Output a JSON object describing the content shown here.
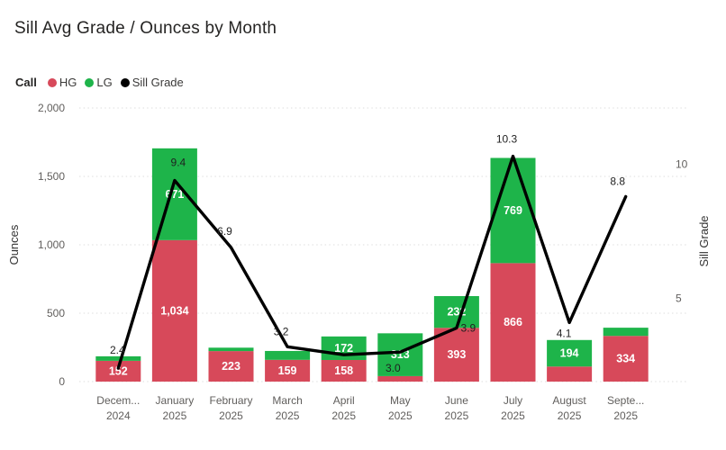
{
  "title": "Sill Avg Grade / Ounces by Month",
  "legend": {
    "title": "Call",
    "items": [
      {
        "label": "HG",
        "color": "#d7495a"
      },
      {
        "label": "LG",
        "color": "#1eb44a"
      },
      {
        "label": "Sill Grade",
        "color": "#000000"
      }
    ]
  },
  "chart_data": {
    "type": "combo-stacked-bar-line",
    "title": "Sill Avg Grade / Ounces by Month",
    "grid": "dotted-horizontal",
    "legend_position": "top-left",
    "categories": [
      {
        "month": "Decem...",
        "year": "2024"
      },
      {
        "month": "January",
        "year": "2025"
      },
      {
        "month": "February",
        "year": "2025"
      },
      {
        "month": "March",
        "year": "2025"
      },
      {
        "month": "April",
        "year": "2025"
      },
      {
        "month": "May",
        "year": "2025"
      },
      {
        "month": "June",
        "year": "2025"
      },
      {
        "month": "July",
        "year": "2025"
      },
      {
        "month": "August",
        "year": "2025"
      },
      {
        "month": "Septe...",
        "year": "2025"
      }
    ],
    "series": [
      {
        "name": "HG",
        "type": "bar",
        "color": "#d7495a",
        "values": [
          152,
          1034,
          223,
          159,
          158,
          40,
          393,
          866,
          110,
          334
        ],
        "labels": [
          "152",
          "1,034",
          "223",
          "159",
          "158",
          "",
          "393",
          "866",
          "",
          "334"
        ]
      },
      {
        "name": "LG",
        "type": "bar",
        "color": "#1eb44a",
        "values": [
          33,
          671,
          25,
          65,
          172,
          313,
          232,
          769,
          194,
          60
        ],
        "labels": [
          "",
          "671",
          "",
          "",
          "172",
          "313",
          "232",
          "769",
          "194",
          ""
        ]
      },
      {
        "name": "Sill Grade",
        "type": "line",
        "color": "#000000",
        "values": [
          2.4,
          9.4,
          6.9,
          3.2,
          2.9,
          3.0,
          3.9,
          10.3,
          4.1,
          8.8
        ],
        "labels": [
          "2.4",
          "9.4",
          "6.9",
          "3.2",
          "",
          "3.0",
          "3.9",
          "10.3",
          "4.1",
          "8.8"
        ]
      }
    ],
    "left_axis": {
      "label": "Ounces",
      "ticks": [
        "0",
        "500",
        "1,000",
        "1,500",
        "2,000"
      ],
      "tick_values": [
        0,
        500,
        1000,
        1500,
        2000
      ],
      "range": [
        0,
        2000
      ]
    },
    "right_axis": {
      "label": "Sill Grade",
      "ticks": [
        "5",
        "10"
      ],
      "tick_values": [
        5,
        10
      ],
      "range": [
        1.9,
        12.1
      ]
    }
  }
}
